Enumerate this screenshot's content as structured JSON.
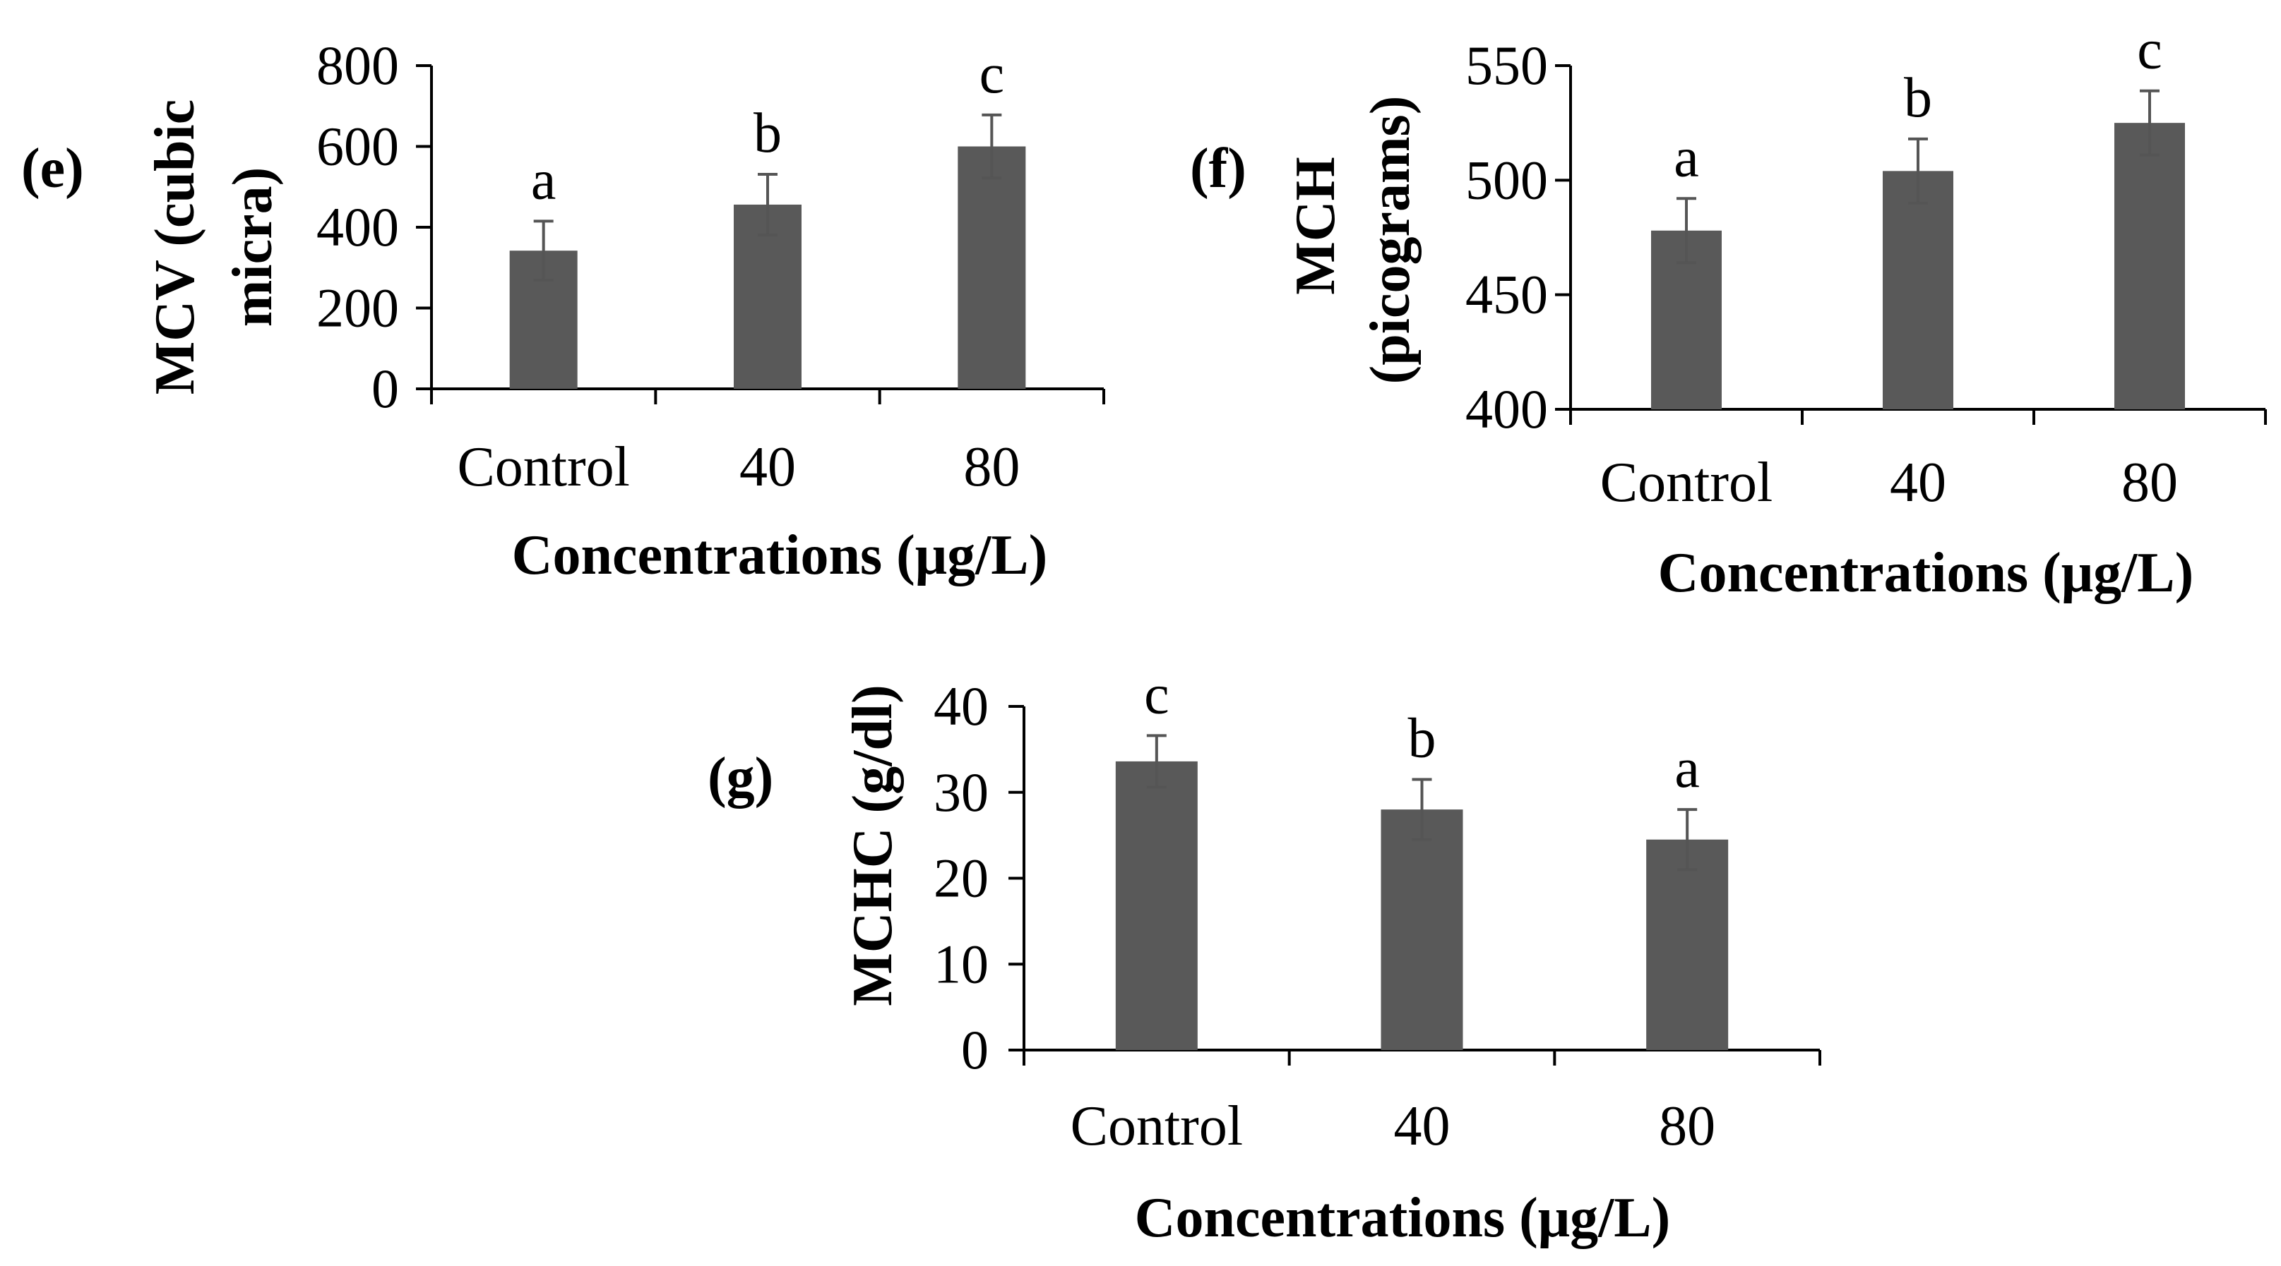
{
  "chart_data": [
    {
      "id": "e",
      "type": "bar",
      "panel_label": "(e)",
      "categories": [
        "Control",
        "40",
        "80"
      ],
      "values": [
        342,
        456,
        600
      ],
      "errors": [
        73,
        75,
        78
      ],
      "significance": [
        "a",
        "b",
        "c"
      ],
      "ylabel_lines": [
        "MCV (cubic",
        "micra)"
      ],
      "xlabel": "Concentrations (μg/L)",
      "ylim": [
        0,
        800
      ],
      "yticks": [
        0,
        200,
        400,
        600,
        800
      ],
      "ytick_labels": [
        "0",
        "200",
        "400",
        "600",
        "800"
      ],
      "bar_color": "#595959",
      "grid": false
    },
    {
      "id": "f",
      "type": "bar",
      "panel_label": "(f)",
      "categories": [
        "Control",
        "40",
        "80"
      ],
      "values": [
        478,
        504,
        525
      ],
      "errors": [
        14,
        14,
        14
      ],
      "significance": [
        "a",
        "b",
        "c"
      ],
      "ylabel_lines": [
        "MCH",
        "(picograms)"
      ],
      "xlabel": "Concentrations (μg/L)",
      "ylim": [
        400,
        550
      ],
      "yticks": [
        400,
        450,
        500,
        550
      ],
      "ytick_labels": [
        "400",
        "450",
        "500",
        "550"
      ],
      "bar_color": "#595959",
      "grid": false
    },
    {
      "id": "g",
      "type": "bar",
      "panel_label": "(g)",
      "categories": [
        "Control",
        "40",
        "80"
      ],
      "values": [
        33.6,
        28,
        24.5
      ],
      "errors": [
        3,
        3.5,
        3.5
      ],
      "significance": [
        "c",
        "b",
        "a"
      ],
      "ylabel_lines": [
        "MCHC (g/dl)"
      ],
      "xlabel": "Concentrations (μg/L)",
      "ylim": [
        0,
        40
      ],
      "yticks": [
        0,
        10,
        20,
        30,
        40
      ],
      "ytick_labels": [
        "0",
        "10",
        "20",
        "30",
        "40"
      ],
      "bar_color": "#595959",
      "grid": false
    }
  ]
}
